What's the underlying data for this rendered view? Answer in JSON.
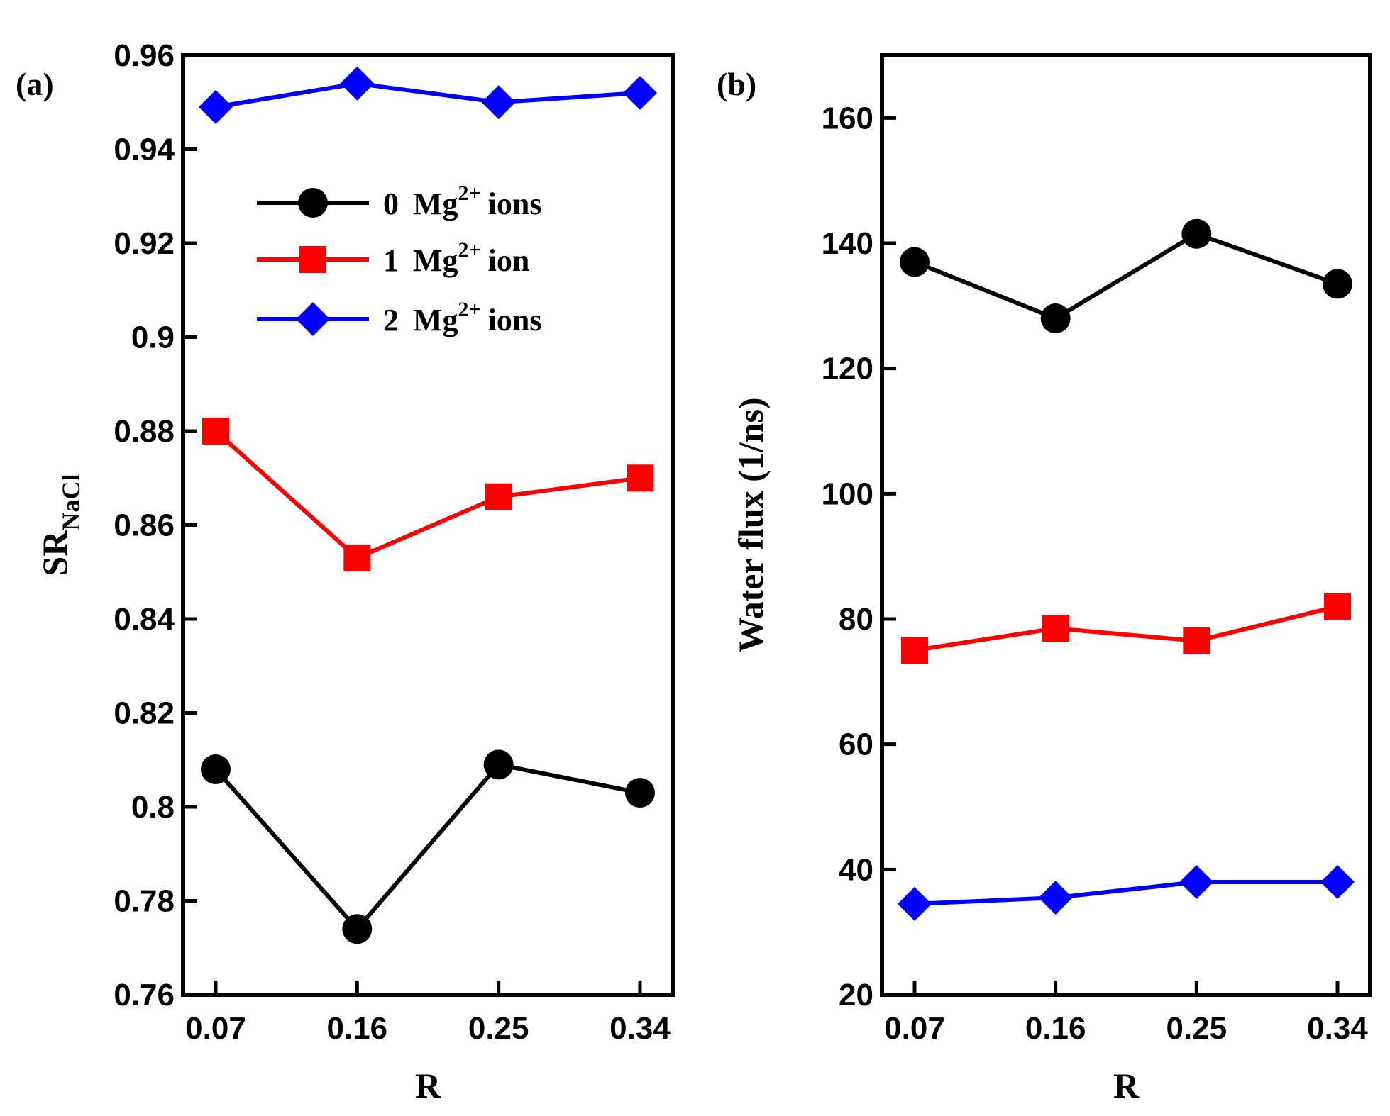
{
  "chart_data": [
    {
      "type": "line",
      "panel_label": "(a)",
      "xlabel": "R",
      "ylabel_main": "SR",
      "ylabel_sub": "NaCl",
      "categories": [
        "0.07",
        "0.16",
        "0.25",
        "0.34"
      ],
      "ylim": [
        0.76,
        0.96
      ],
      "yticks": [
        0.76,
        0.78,
        0.8,
        0.82,
        0.84,
        0.86,
        0.88,
        0.9,
        0.92,
        0.94,
        0.96
      ],
      "ytick_labels": [
        "0.76",
        "0.78",
        "0.8",
        "0.82",
        "0.84",
        "0.86",
        "0.88",
        "0.9",
        "0.92",
        "0.94",
        "0.96"
      ],
      "legend_position": "upper-center",
      "series": [
        {
          "name": "0 Mg2+ ions",
          "num": "0",
          "base": "Mg",
          "sup": "2+",
          "suffix": "ions",
          "color": "#000000",
          "marker": "circle",
          "values": [
            0.808,
            0.774,
            0.809,
            0.803
          ]
        },
        {
          "name": "1 Mg2+ ion",
          "num": "1",
          "base": "Mg",
          "sup": "2+",
          "suffix": "ion",
          "color": "#ff0000",
          "marker": "square",
          "values": [
            0.88,
            0.853,
            0.866,
            0.87
          ]
        },
        {
          "name": "2 Mg2+ ions",
          "num": "2",
          "base": "Mg",
          "sup": "2+",
          "suffix": "ions",
          "color": "#0000ff",
          "marker": "diamond",
          "values": [
            0.949,
            0.954,
            0.95,
            0.952
          ]
        }
      ]
    },
    {
      "type": "line",
      "panel_label": "(b)",
      "xlabel": "R",
      "ylabel_main": "Water flux (1/ns)",
      "categories": [
        "0.07",
        "0.16",
        "0.25",
        "0.34"
      ],
      "ylim": [
        20,
        170
      ],
      "yticks": [
        20,
        40,
        60,
        80,
        100,
        120,
        140,
        160
      ],
      "ytick_labels": [
        "20",
        "40",
        "60",
        "80",
        "100",
        "120",
        "140",
        "160"
      ],
      "series": [
        {
          "name": "0 Mg2+ ions",
          "color": "#000000",
          "marker": "circle",
          "values": [
            137,
            128,
            141.5,
            133.5
          ]
        },
        {
          "name": "1 Mg2+ ion",
          "color": "#ff0000",
          "marker": "square",
          "values": [
            75,
            78.5,
            76.5,
            82
          ]
        },
        {
          "name": "2 Mg2+ ions",
          "color": "#0000ff",
          "marker": "diamond",
          "values": [
            34.5,
            35.5,
            38,
            38
          ]
        }
      ]
    }
  ]
}
